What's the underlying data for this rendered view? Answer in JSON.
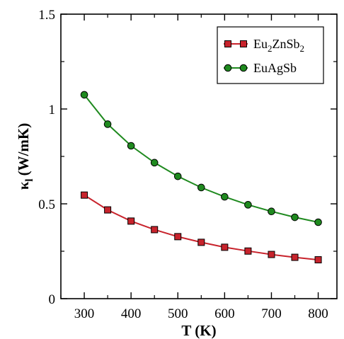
{
  "chart_data": {
    "type": "line",
    "xlabel": "T (K)",
    "ylabel": "κl (W/mK)",
    "ylabel_parts": {
      "main": "κ",
      "sub": "l",
      "unit": "(W/mK)"
    },
    "xlim": [
      250,
      840
    ],
    "ylim": [
      0,
      1.5
    ],
    "xticks": [
      300,
      400,
      500,
      600,
      700,
      800
    ],
    "xtick_labels": [
      "300",
      "400",
      "500",
      "600",
      "700",
      "800"
    ],
    "yticks": [
      0,
      0.5,
      1,
      1.5
    ],
    "ytick_labels": [
      "0",
      "0.5",
      "1",
      "1.5"
    ],
    "grid": false,
    "legend_position": "top-right",
    "x": [
      300,
      350,
      400,
      450,
      500,
      550,
      600,
      650,
      700,
      750,
      800
    ],
    "series": [
      {
        "name": "Eu2ZnSb2",
        "label_parts": [
          {
            "text": "Eu",
            "sub": false
          },
          {
            "text": "2",
            "sub": true
          },
          {
            "text": "ZnSb",
            "sub": false
          },
          {
            "text": "2",
            "sub": true
          }
        ],
        "marker": "square",
        "color": "#c8232c",
        "values": [
          0.546,
          0.468,
          0.409,
          0.364,
          0.327,
          0.297,
          0.271,
          0.251,
          0.233,
          0.218,
          0.205
        ]
      },
      {
        "name": "EuAgSb",
        "label_parts": [
          {
            "text": "EuAgSb",
            "sub": false
          }
        ],
        "marker": "circle",
        "color": "#1f8a1f",
        "values": [
          1.075,
          0.92,
          0.806,
          0.717,
          0.645,
          0.586,
          0.537,
          0.495,
          0.46,
          0.429,
          0.403
        ]
      }
    ]
  }
}
